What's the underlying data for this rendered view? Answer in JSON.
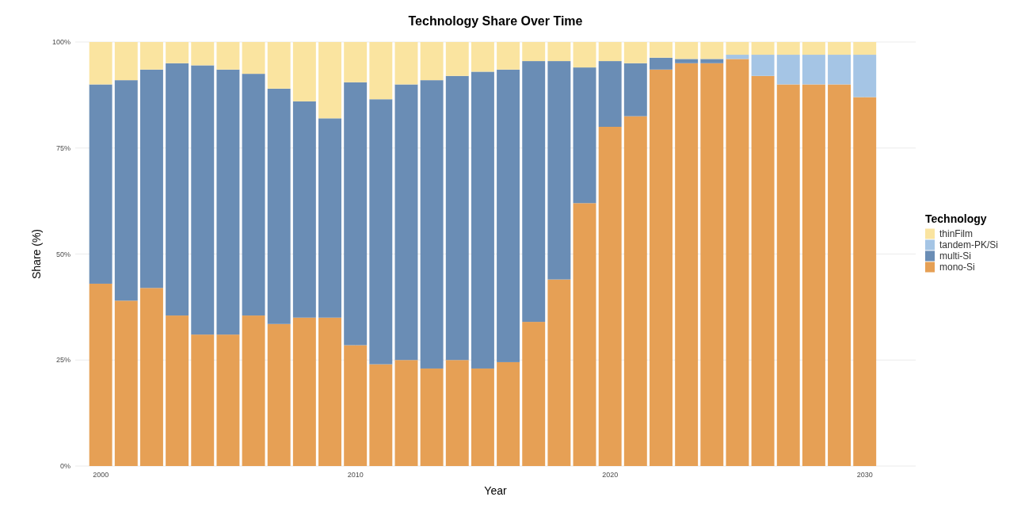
{
  "chart_data": {
    "type": "bar",
    "stacked": true,
    "title": "Technology Share Over Time",
    "xlabel": "Year",
    "ylabel": "Share (%)",
    "legend_title": "Technology",
    "legend": "right",
    "grid": true,
    "x": [
      2000,
      2001,
      2002,
      2003,
      2004,
      2005,
      2006,
      2007,
      2008,
      2009,
      2010,
      2011,
      2012,
      2013,
      2014,
      2015,
      2016,
      2017,
      2018,
      2019,
      2020,
      2021,
      2022,
      2023,
      2024,
      2025,
      2026,
      2027,
      2028,
      2029,
      2030
    ],
    "xlim": [
      1999,
      2032
    ],
    "xticks": [
      2000,
      2010,
      2020,
      2030
    ],
    "ylim": [
      0,
      100
    ],
    "yticks": [
      {
        "value": 0,
        "label": "0%"
      },
      {
        "value": 25,
        "label": "25%"
      },
      {
        "value": 50,
        "label": "50%"
      },
      {
        "value": 75,
        "label": "75%"
      },
      {
        "value": 100,
        "label": "100%"
      }
    ],
    "series": [
      {
        "name": "mono-Si",
        "color": "#e6a055",
        "values": [
          43,
          39,
          42,
          35.5,
          31,
          31,
          35.5,
          33.5,
          35,
          35,
          28.5,
          24,
          25,
          23,
          25,
          23,
          24.5,
          34,
          44,
          62,
          80,
          82.5,
          93.5,
          95,
          95,
          96,
          92,
          90,
          90,
          90,
          87
        ]
      },
      {
        "name": "multi-Si",
        "color": "#6a8db5",
        "values": [
          47,
          52,
          51.5,
          59.5,
          63.5,
          62.5,
          57,
          55.5,
          51,
          47,
          62,
          62.5,
          65,
          68,
          67,
          70,
          69,
          61.5,
          51.5,
          32,
          15.5,
          12.5,
          2.8,
          1,
          1,
          0,
          0,
          0,
          0,
          0,
          0
        ]
      },
      {
        "name": "tandem-PK/Si",
        "color": "#a5c5e5",
        "values": [
          0,
          0,
          0,
          0,
          0,
          0,
          0,
          0,
          0,
          0,
          0,
          0,
          0,
          0,
          0,
          0,
          0,
          0,
          0,
          0,
          0,
          0,
          0,
          0,
          0,
          1,
          5,
          7,
          7,
          7,
          10
        ]
      },
      {
        "name": "thinFilm",
        "color": "#fae4a0",
        "values": [
          10,
          9,
          6.5,
          5,
          5.5,
          6.5,
          7.5,
          11,
          14,
          18,
          9.5,
          13.5,
          10,
          9,
          8,
          7,
          6.5,
          4.5,
          4.5,
          6,
          4.5,
          5,
          3.7,
          4,
          4,
          3,
          3,
          3,
          3,
          3,
          3
        ]
      }
    ]
  }
}
